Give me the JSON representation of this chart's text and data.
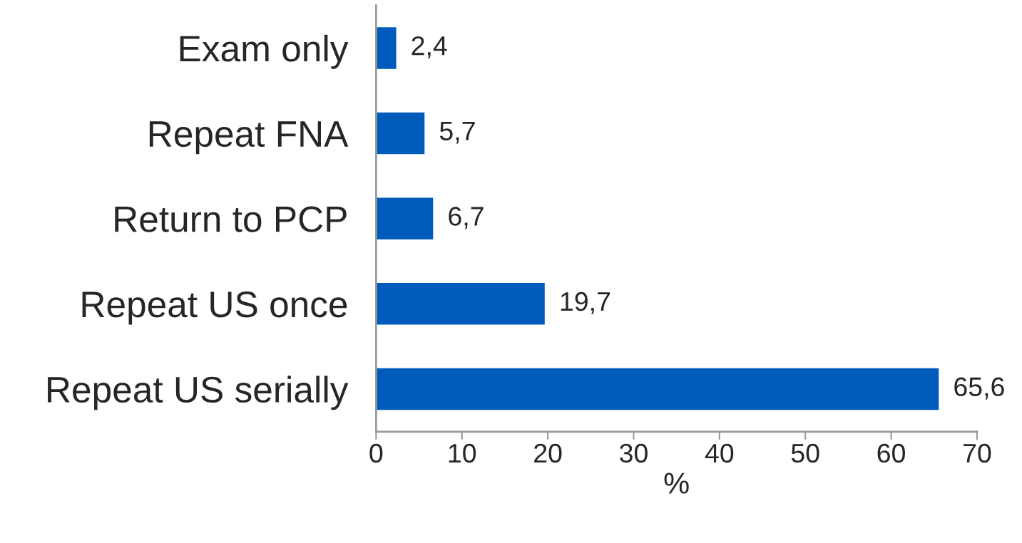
{
  "chart_data": {
    "type": "bar",
    "orientation": "horizontal",
    "categories": [
      "Exam only",
      "Repeat FNA",
      "Return to PCP",
      "Repeat US once",
      "Repeat US serially"
    ],
    "values": [
      2.4,
      5.7,
      6.7,
      19.7,
      65.6
    ],
    "value_labels": [
      "2,4",
      "5,7",
      "6,7",
      "19,7",
      "65,6"
    ],
    "color": "#005bbb",
    "xlabel": "%",
    "xlim": [
      0,
      70
    ],
    "xticks": [
      0,
      10,
      20,
      30,
      40,
      50,
      60,
      70
    ],
    "grid": false,
    "legend": false
  }
}
